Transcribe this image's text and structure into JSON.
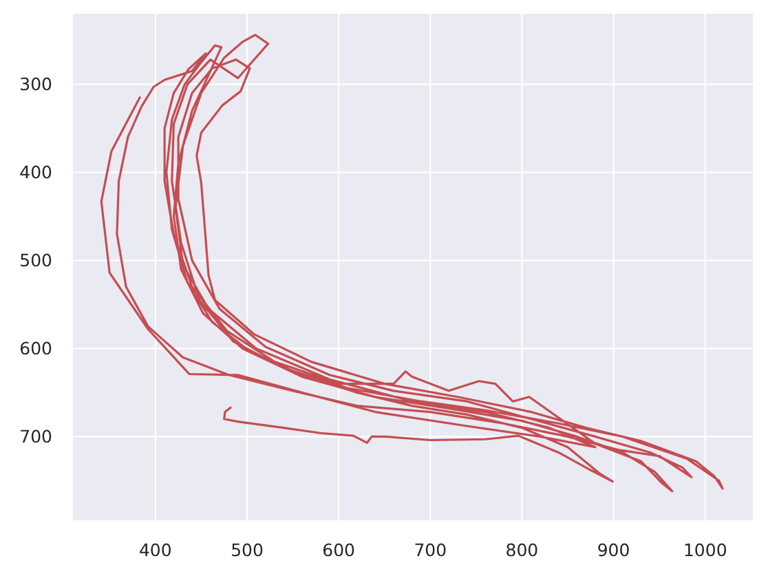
{
  "chart_data": {
    "type": "line",
    "x": [
      482,
      476,
      475,
      490,
      540,
      580,
      616,
      631,
      636,
      651,
      700,
      760,
      796,
      840,
      875,
      899,
      885,
      850,
      800,
      740,
      680,
      620,
      560,
      505,
      462,
      435,
      418,
      412,
      418,
      432,
      450,
      465,
      472,
      460,
      440,
      425,
      420,
      428,
      452,
      495,
      560,
      640,
      720,
      800,
      860,
      910,
      945,
      964,
      952,
      930,
      880,
      808,
      790,
      771,
      753,
      720,
      680,
      673,
      660,
      600,
      530,
      478,
      440,
      420,
      410,
      410,
      420,
      436,
      455,
      440,
      410,
      398,
      385,
      370,
      360,
      358,
      368,
      392,
      430,
      480,
      550,
      620,
      700,
      780,
      850,
      905,
      950,
      985,
      975,
      940,
      880,
      810,
      740,
      660,
      590,
      520,
      470,
      440,
      425,
      425,
      440,
      462,
      488,
      503,
      493,
      473,
      450,
      445,
      450,
      458,
      465,
      508,
      570,
      650,
      730,
      810,
      870,
      930,
      990,
      1010,
      1019,
      1015,
      980,
      910,
      840,
      760,
      690,
      610,
      540,
      485,
      448,
      428,
      418,
      420,
      435,
      460,
      490,
      523,
      509,
      495,
      475,
      450,
      430,
      422,
      430,
      458,
      510,
      590,
      680,
      760,
      830,
      880,
      820,
      740,
      640,
      560,
      490,
      437,
      392,
      350,
      341,
      352,
      383
    ],
    "series": [
      {
        "color": "#c44e52",
        "values": [
          667,
          672,
          680,
          683,
          690,
          696,
          699,
          707,
          700,
          700,
          704,
          703,
          699,
          718,
          738,
          751,
          742,
          712,
          690,
          675,
          665,
          650,
          630,
          605,
          570,
          525,
          465,
          400,
          340,
          300,
          275,
          256,
          258,
          285,
          330,
          390,
          450,
          510,
          560,
          600,
          632,
          655,
          668,
          682,
          700,
          718,
          740,
          762,
          752,
          728,
          708,
          655,
          660,
          640,
          637,
          648,
          632,
          626,
          640,
          640,
          615,
          580,
          530,
          470,
          410,
          350,
          310,
          283,
          265,
          285,
          295,
          303,
          325,
          360,
          410,
          470,
          530,
          575,
          610,
          630,
          648,
          665,
          672,
          685,
          700,
          715,
          722,
          746,
          735,
          718,
          700,
          680,
          660,
          648,
          630,
          598,
          555,
          500,
          430,
          360,
          310,
          282,
          272,
          282,
          308,
          324,
          355,
          381,
          412,
          517,
          545,
          584,
          615,
          640,
          655,
          672,
          690,
          705,
          728,
          745,
          759,
          750,
          725,
          700,
          685,
          670,
          660,
          645,
          622,
          592,
          545,
          480,
          410,
          345,
          300,
          272,
          293,
          254,
          244,
          252,
          270,
          310,
          370,
          440,
          505,
          555,
          600,
          635,
          660,
          672,
          690,
          712,
          700,
          688,
          672,
          650,
          630,
          629,
          578,
          514,
          433,
          376,
          315
        ]
      }
    ],
    "xlim": [
      310,
      1052
    ],
    "ylim": [
      795,
      220
    ],
    "xticks": [
      400,
      500,
      600,
      700,
      800,
      900,
      1000
    ],
    "yticks": [
      300,
      400,
      500,
      600,
      700
    ],
    "grid": true
  }
}
